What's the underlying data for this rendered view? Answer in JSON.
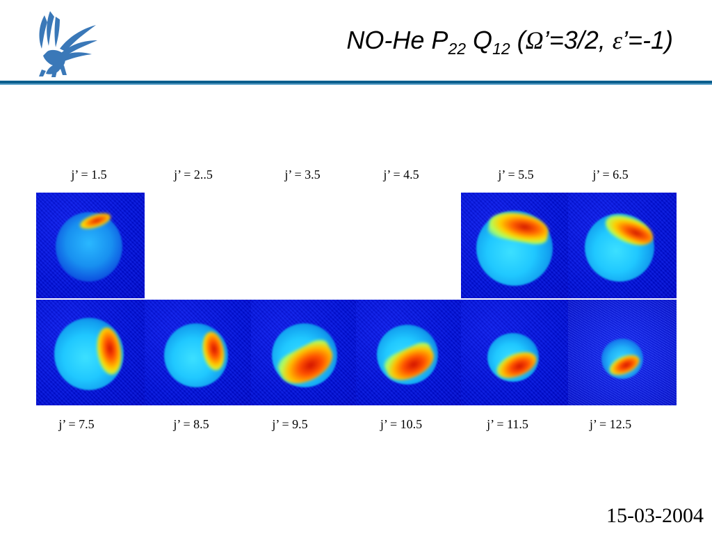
{
  "title": {
    "main": "NO-He P",
    "sub1": "22",
    "mid": " Q",
    "sub2": "12",
    "paren_open": " (",
    "omega": "Ω",
    "omega_val": "’=3/2, ",
    "epsilon": "ε",
    "epsilon_val": "’=-1)"
  },
  "labels": {
    "top": [
      "j’ = 1.5",
      "j’ = 2..5",
      "j’ = 3.5",
      "j’ = 4.5",
      "j’ = 5.5",
      "j’ = 6.5"
    ],
    "bottom": [
      "j’ = 7.5",
      "j’ = 8.5",
      "j’ = 9.5",
      "j’ = 10.5",
      "j’ = 11.5",
      "j’ = 12.5"
    ]
  },
  "date": "15-03-2004",
  "colors": {
    "rule": "#0b5f8e",
    "logo": "#3a78b8"
  }
}
